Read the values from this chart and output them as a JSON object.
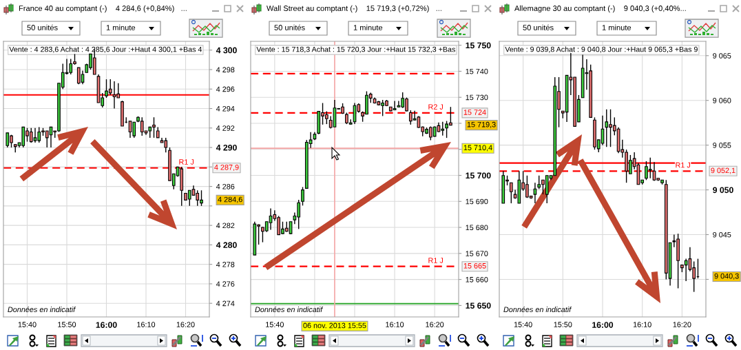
{
  "chart_data": [
    {
      "type": "candlestick",
      "title": "France 40 au comptant (-)    4 284,6 (+0,84%)   ...",
      "subtitle": "Vente : 4 283,6 Achat : 4 285,6 Jour :+Haut 4 300,1 +Bas 4",
      "x": [
        "2013-11-06T15:35",
        "2013-11-06T15:36",
        "2013-11-06T15:37",
        "2013-11-06T15:38",
        "2013-11-06T15:39",
        "2013-11-06T15:40",
        "2013-11-06T15:41",
        "2013-11-06T15:42",
        "2013-11-06T15:43",
        "2013-11-06T15:44",
        "2013-11-06T15:45",
        "2013-11-06T15:46",
        "2013-11-06T15:47",
        "2013-11-06T15:48",
        "2013-11-06T15:49",
        "2013-11-06T15:50",
        "2013-11-06T15:51",
        "2013-11-06T15:52",
        "2013-11-06T15:53",
        "2013-11-06T15:54",
        "2013-11-06T15:55",
        "2013-11-06T15:56",
        "2013-11-06T15:57",
        "2013-11-06T15:58",
        "2013-11-06T15:59",
        "2013-11-06T16:00",
        "2013-11-06T16:01",
        "2013-11-06T16:02",
        "2013-11-06T16:03",
        "2013-11-06T16:04",
        "2013-11-06T16:05",
        "2013-11-06T16:06",
        "2013-11-06T16:07",
        "2013-11-06T16:08",
        "2013-11-06T16:09",
        "2013-11-06T16:10",
        "2013-11-06T16:11",
        "2013-11-06T16:12",
        "2013-11-06T16:13",
        "2013-11-06T16:14",
        "2013-11-06T16:15",
        "2013-11-06T16:16",
        "2013-11-06T16:17",
        "2013-11-06T16:18",
        "2013-11-06T16:19",
        "2013-11-06T16:20",
        "2013-11-06T16:21",
        "2013-11-06T16:22",
        "2013-11-06T16:23",
        "2013-11-06T16:24"
      ],
      "ohlc": [
        [
          4290.2,
          4291.5,
          4290.0,
          4291.5
        ],
        [
          4291.2,
          4291.3,
          4290.0,
          4290.5
        ],
        [
          4290.3,
          4290.3,
          4289.5,
          4290.1
        ],
        [
          4290.2,
          4290.5,
          4290.0,
          4290.5
        ],
        [
          4290.2,
          4292.1,
          4290.0,
          4292.1
        ],
        [
          4291.7,
          4292.0,
          4290.6,
          4291.2
        ],
        [
          4291.6,
          4292.0,
          4290.5,
          4290.6
        ],
        [
          4290.7,
          4292.0,
          4290.5,
          4291.0
        ],
        [
          4290.7,
          4292.1,
          4290.5,
          4291.6
        ],
        [
          4291.7,
          4292.0,
          4291.2,
          4291.6
        ],
        [
          4291.7,
          4291.7,
          4290.0,
          4291.0
        ],
        [
          4291.3,
          4292.1,
          4290.0,
          4292.1
        ],
        [
          4291.7,
          4291.7,
          4291.0,
          4291.6
        ],
        [
          4291.7,
          4296.6,
          4291.6,
          4296.6
        ],
        [
          4296.2,
          4298.6,
          4296.0,
          4297.7
        ],
        [
          4297.6,
          4299.1,
          4297.5,
          4297.7
        ],
        [
          4297.7,
          4299.1,
          4297.5,
          4298.6
        ],
        [
          4298.8,
          4299.6,
          4298.5,
          4298.6
        ],
        [
          4298.2,
          4298.2,
          4296.5,
          4296.6
        ],
        [
          4296.7,
          4297.9,
          4296.5,
          4297.5
        ],
        [
          4297.7,
          4298.6,
          4297.7,
          4298.5
        ],
        [
          4298.2,
          4299.6,
          4298.0,
          4299.6
        ],
        [
          4299.2,
          4300.1,
          4297.5,
          4297.5
        ],
        [
          4297.3,
          4297.5,
          4294.6,
          4294.6
        ],
        [
          4294.3,
          4295.6,
          4294.1,
          4295.1
        ],
        [
          4295.3,
          4297.0,
          4295.1,
          4295.8
        ],
        [
          4296.0,
          4297.0,
          4295.4,
          4295.6
        ],
        [
          4295.4,
          4296.8,
          4294.0,
          4295.2
        ],
        [
          4295.5,
          4296.6,
          4295.1,
          4295.1
        ],
        [
          4294.7,
          4294.8,
          4292.2,
          4292.2
        ],
        [
          4292.6,
          4293.1,
          4292.5,
          4292.6
        ],
        [
          4292.7,
          4292.7,
          4291.0,
          4291.6
        ],
        [
          4291.2,
          4292.6,
          4291.0,
          4292.6
        ],
        [
          4292.7,
          4293.2,
          4292.6,
          4293.1
        ],
        [
          4292.7,
          4293.1,
          4291.2,
          4291.6
        ],
        [
          4291.7,
          4291.7,
          4291.3,
          4291.5
        ],
        [
          4291.7,
          4292.1,
          4291.0,
          4292.1
        ],
        [
          4292.3,
          4293.1,
          4291.0,
          4292.1
        ],
        [
          4291.7,
          4292.1,
          4291.0,
          4291.0
        ],
        [
          4290.7,
          4291.0,
          4290.5,
          4290.5
        ],
        [
          4290.7,
          4291.0,
          4289.5,
          4290.0
        ],
        [
          4289.7,
          4290.0,
          4286.6,
          4286.6
        ],
        [
          4286.1,
          4287.3,
          4285.7,
          4287.3
        ],
        [
          4287.1,
          4288.0,
          4287.0,
          4288.0
        ],
        [
          4287.8,
          4288.0,
          4284.0,
          4285.6
        ],
        [
          4285.3,
          4285.3,
          4284.6,
          4284.6
        ],
        [
          4284.7,
          4285.6,
          4284.0,
          4285.6
        ],
        [
          4285.7,
          4286.1,
          4285.1,
          4285.1
        ],
        [
          4285.3,
          4285.6,
          4284.0,
          4284.6
        ],
        [
          4284.3,
          4285.6,
          4284.0,
          4284.6
        ]
      ],
      "colors": [
        "#3fcf3f",
        "#e97474",
        "#e97474",
        "#3fcf3f",
        "#3fcf3f",
        "#e97474",
        "#e97474",
        "#3fcf3f",
        "#3fcf3f",
        "#e97474",
        "#e97474",
        "#3fcf3f",
        "#e97474",
        "#3fcf3f",
        "#3fcf3f",
        "#3fcf3f",
        "#3fcf3f",
        "#e97474",
        "#e97474",
        "#3fcf3f",
        "#3fcf3f",
        "#3fcf3f",
        "#e97474",
        "#e97474",
        "#3fcf3f",
        "#3fcf3f",
        "#e97474",
        "#e97474",
        "#e97474",
        "#e97474",
        "#000000",
        "#e97474",
        "#3fcf3f",
        "#3fcf3f",
        "#e97474",
        "#e97474",
        "#3fcf3f",
        "#e97474",
        "#e97474",
        "#e97474",
        "#e97474",
        "#e97474",
        "#3fcf3f",
        "#3fcf3f",
        "#e97474",
        "#e97474",
        "#3fcf3f",
        "#e97474",
        "#e97474",
        "#3fcf3f"
      ],
      "xlim": [
        "2013-11-06T15:34",
        "2013-11-06T16:26"
      ],
      "ylim": [
        4272.6,
        4300.9
      ],
      "xticks": [
        {
          "value": "2013-11-06T15:40",
          "label": "15:40"
        },
        {
          "value": "2013-11-06T15:50",
          "label": "15:50"
        },
        {
          "value": "2013-11-06T16:00",
          "label": "16:00"
        },
        {
          "value": "2013-11-06T16:10",
          "label": "16:10"
        },
        {
          "value": "2013-11-06T16:20",
          "label": "16:20"
        }
      ],
      "yticks": [
        {
          "value": 4274,
          "label": "4 274"
        },
        {
          "value": 4276,
          "label": "4 276"
        },
        {
          "value": 4278,
          "label": "4 278"
        },
        {
          "value": 4280,
          "label": "4 280"
        },
        {
          "value": 4282,
          "label": "4 282"
        },
        {
          "value": 4284,
          "label": null
        },
        {
          "value": 4286,
          "label": "4 286"
        },
        {
          "value": 4288,
          "label": null
        },
        {
          "value": 4290,
          "label": "4 290"
        },
        {
          "value": 4292,
          "label": "4 292"
        },
        {
          "value": 4294,
          "label": "4 294"
        },
        {
          "value": 4296,
          "label": "4 296"
        },
        {
          "value": 4298,
          "label": "4 298"
        },
        {
          "value": 4300,
          "label": "4 300"
        }
      ],
      "grid": true,
      "ref_lines": [
        {
          "axis": "y",
          "value": 4295.4,
          "color": "#ff0000",
          "line_style": "solid"
        },
        {
          "axis": "y",
          "value": 4287.9,
          "label": "4 287,9",
          "color": "#ff0000",
          "line_style": "dashed"
        }
      ],
      "annotations": [
        "50 unités",
        "1 minute",
        "Données en indicatif",
        {
          "text": "R1 J",
          "y": 4287.9
        },
        {
          "text": "4 284,6",
          "x": "2013-11-06T16:24",
          "y": 4284.6
        }
      ]
    },
    {
      "type": "candlestick",
      "title": "Wall Street au comptant (-)    15 719,3 (+0,72%)   ...",
      "subtitle": "Vente : 15 718,3 Achat : 15 720,3 Jour :+Haut 15 732,3 +Bas",
      "x": [
        "2013-11-06T15:35",
        "2013-11-06T15:36",
        "2013-11-06T15:37",
        "2013-11-06T15:38",
        "2013-11-06T15:39",
        "2013-11-06T15:40",
        "2013-11-06T15:41",
        "2013-11-06T15:42",
        "2013-11-06T15:43",
        "2013-11-06T15:44",
        "2013-11-06T15:45",
        "2013-11-06T15:46",
        "2013-11-06T15:47",
        "2013-11-06T15:48",
        "2013-11-06T15:49",
        "2013-11-06T15:50",
        "2013-11-06T15:51",
        "2013-11-06T15:52",
        "2013-11-06T15:53",
        "2013-11-06T15:54",
        "2013-11-06T15:55",
        "2013-11-06T15:56",
        "2013-11-06T15:57",
        "2013-11-06T15:58",
        "2013-11-06T15:59",
        "2013-11-06T16:00",
        "2013-11-06T16:01",
        "2013-11-06T16:02",
        "2013-11-06T16:03",
        "2013-11-06T16:04",
        "2013-11-06T16:05",
        "2013-11-06T16:06",
        "2013-11-06T16:07",
        "2013-11-06T16:08",
        "2013-11-06T16:09",
        "2013-11-06T16:10",
        "2013-11-06T16:11",
        "2013-11-06T16:12",
        "2013-11-06T16:13",
        "2013-11-06T16:14",
        "2013-11-06T16:15",
        "2013-11-06T16:16",
        "2013-11-06T16:17",
        "2013-11-06T16:18",
        "2013-11-06T16:19",
        "2013-11-06T16:20",
        "2013-11-06T16:21",
        "2013-11-06T16:22",
        "2013-11-06T16:23",
        "2013-11-06T16:24"
      ],
      "ohlc": [
        [
          15669.4,
          15682.2,
          15669.4,
          15681.3
        ],
        [
          15681.0,
          15681.2,
          15673.4,
          15680.5
        ],
        [
          15680.0,
          15680.2,
          15674.3,
          15678.5
        ],
        [
          15678.7,
          15682.2,
          15678.2,
          15682.2
        ],
        [
          15681.8,
          15687.3,
          15679.1,
          15684.4
        ],
        [
          15684.9,
          15686.6,
          15682.5,
          15683.4
        ],
        [
          15683.8,
          15684.4,
          15677.2,
          15677.2
        ],
        [
          15677.6,
          15682.2,
          15677.4,
          15679.4
        ],
        [
          15679.7,
          15682.2,
          15678.3,
          15678.5
        ],
        [
          15677.6,
          15682.2,
          15677.4,
          15682.2
        ],
        [
          15682.9,
          15685.7,
          15681.3,
          15684.4
        ],
        [
          15684.0,
          15690.6,
          15679.4,
          15689.5
        ],
        [
          15690.0,
          15695.5,
          15688.4,
          15694.4
        ],
        [
          15695.0,
          15713.6,
          15695.0,
          15712.7
        ],
        [
          15712.2,
          15716.6,
          15710.5,
          15713.6
        ],
        [
          15714.0,
          15716.6,
          15713.6,
          15715.8
        ],
        [
          15716.2,
          15724.6,
          15715.8,
          15724.6
        ],
        [
          15724.1,
          15727.8,
          15719.5,
          15722.8
        ],
        [
          15723.3,
          15724.6,
          15719.7,
          15721.8
        ],
        [
          15721.2,
          15722.8,
          15718.0,
          15718.4
        ],
        [
          15718.6,
          15729.0,
          15718.6,
          15725.9
        ],
        [
          15725.5,
          15725.7,
          15725.4,
          15725.7
        ],
        [
          15726.3,
          15727.7,
          15723.6,
          15723.9
        ],
        [
          15723.4,
          15724.1,
          15719.7,
          15720.2
        ],
        [
          15719.7,
          15721.5,
          15719.5,
          15720.2
        ],
        [
          15720.6,
          15727.8,
          15719.7,
          15726.8
        ],
        [
          15727.2,
          15727.7,
          15724.1,
          15724.6
        ],
        [
          15724.1,
          15724.6,
          15720.6,
          15722.8
        ],
        [
          15723.5,
          15732.3,
          15723.5,
          15730.8
        ],
        [
          15731.2,
          15731.8,
          15727.9,
          15729.7
        ],
        [
          15729.4,
          15729.9,
          15727.6,
          15727.8
        ],
        [
          15728.3,
          15728.6,
          15726.9,
          15727.1
        ],
        [
          15726.8,
          15729.0,
          15722.8,
          15727.8
        ],
        [
          15728.6,
          15729.0,
          15726.6,
          15726.8
        ],
        [
          15726.3,
          15726.3,
          15724.6,
          15724.8
        ],
        [
          15725.2,
          15728.6,
          15725.0,
          15725.7
        ],
        [
          15726.3,
          15728.6,
          15726.1,
          15726.8
        ],
        [
          15726.3,
          15731.9,
          15725.9,
          15729.6
        ],
        [
          15729.4,
          15729.9,
          15724.6,
          15724.8
        ],
        [
          15724.1,
          15725.0,
          15719.5,
          15720.9
        ],
        [
          15721.3,
          15724.8,
          15721.1,
          15721.8
        ],
        [
          15722.4,
          15722.8,
          15718.2,
          15718.4
        ],
        [
          15718.6,
          15718.8,
          15715.0,
          15716.8
        ],
        [
          15716.2,
          15718.4,
          15715.9,
          15717.7
        ],
        [
          15718.4,
          15718.8,
          15713.5,
          15714.7
        ],
        [
          15715.0,
          15718.8,
          15714.9,
          15718.6
        ],
        [
          15719.1,
          15720.3,
          15716.6,
          15716.8
        ],
        [
          15717.3,
          15720.6,
          15715.3,
          15717.8
        ],
        [
          15718.2,
          15720.9,
          15714.4,
          15719.7
        ],
        [
          15720.2,
          15726.3,
          15719.3,
          15719.3
        ]
      ],
      "colors": [
        "#3fcf3f",
        "#e97474",
        "#e97474",
        "#3fcf3f",
        "#3fcf3f",
        "#e97474",
        "#e97474",
        "#3fcf3f",
        "#e97474",
        "#3fcf3f",
        "#3fcf3f",
        "#3fcf3f",
        "#3fcf3f",
        "#3fcf3f",
        "#3fcf3f",
        "#3fcf3f",
        "#3fcf3f",
        "#e97474",
        "#e97474",
        "#e97474",
        "#3fcf3f",
        "#3fcf3f",
        "#e97474",
        "#e97474",
        "#3fcf3f",
        "#3fcf3f",
        "#e97474",
        "#e97474",
        "#3fcf3f",
        "#e97474",
        "#e97474",
        "#e97474",
        "#3fcf3f",
        "#e97474",
        "#e97474",
        "#3fcf3f",
        "#3fcf3f",
        "#3fcf3f",
        "#e97474",
        "#e97474",
        "#3fcf3f",
        "#e97474",
        "#e97474",
        "#3fcf3f",
        "#e97474",
        "#3fcf3f",
        "#e97474",
        "#3fcf3f",
        "#3fcf3f",
        "#e97474"
      ],
      "xlim": [
        "2013-11-06T15:34",
        "2013-11-06T16:26"
      ],
      "ylim": [
        15645.6,
        15751.5
      ],
      "xticks": [
        {
          "value": "2013-11-06T15:40",
          "label": "15:40"
        },
        {
          "value": "2013-11-06T15:50",
          "label": null
        },
        {
          "value": "2013-11-06T16:00",
          "label": null
        },
        {
          "value": "2013-11-06T16:10",
          "label": "16:10"
        },
        {
          "value": "2013-11-06T16:20",
          "label": "16:20"
        }
      ],
      "yticks": [
        {
          "value": 15650,
          "label": "15 650"
        },
        {
          "value": 15660,
          "label": "15 660"
        },
        {
          "value": 15670,
          "label": "15 670"
        },
        {
          "value": 15680,
          "label": "15 680"
        },
        {
          "value": 15690,
          "label": "15 690"
        },
        {
          "value": 15700,
          "label": "15 700"
        },
        {
          "value": 15710,
          "label": null
        },
        {
          "value": 15720,
          "label": null
        },
        {
          "value": 15730,
          "label": "15 730"
        },
        {
          "value": 15740,
          "label": "15 740"
        },
        {
          "value": 15750,
          "label": "15 750"
        }
      ],
      "grid": true,
      "ref_lines": [
        {
          "axis": "y",
          "value": 15739.1,
          "color": "#ff0000",
          "line_style": "dashed"
        },
        {
          "axis": "y",
          "value": 15724,
          "label": "15 724",
          "color": "#ff0000",
          "line_style": "dashed"
        },
        {
          "axis": "y",
          "value": 15710.4,
          "label": "15 710,4",
          "color": "#f4a6a6",
          "line_style": "solid"
        },
        {
          "axis": "y",
          "value": 15665,
          "label": "15 665",
          "color": "#ff0000",
          "line_style": "dashed"
        },
        {
          "axis": "y",
          "value": 15650.7,
          "color": "#33aa33",
          "line_style": "solid"
        },
        {
          "axis": "x",
          "value": "2013-11-06T15:55",
          "label": "06 nov. 2013 15:55",
          "color": "#f4a6a6",
          "line_style": "solid"
        }
      ],
      "annotations": [
        "50 unités",
        "1 minute",
        "Données en indicatif",
        {
          "text": "R2 J",
          "y": 15724
        },
        {
          "text": "R1 J",
          "y": 15665
        },
        {
          "text": "15 719,3",
          "x": "2013-11-06T16:24",
          "y": 15719.3
        }
      ]
    },
    {
      "type": "candlestick",
      "title": "Allemagne 30 au comptant (-)    9 040,3 (+0,40%...",
      "subtitle": "Vente : 9 039,8 Achat : 9 040,8 Jour :+Haut 9 065,3 +Bas 9",
      "x": [
        "2013-11-06T15:35",
        "2013-11-06T15:36",
        "2013-11-06T15:37",
        "2013-11-06T15:38",
        "2013-11-06T15:39",
        "2013-11-06T15:40",
        "2013-11-06T15:41",
        "2013-11-06T15:42",
        "2013-11-06T15:43",
        "2013-11-06T15:44",
        "2013-11-06T15:45",
        "2013-11-06T15:46",
        "2013-11-06T15:47",
        "2013-11-06T15:48",
        "2013-11-06T15:49",
        "2013-11-06T15:50",
        "2013-11-06T15:51",
        "2013-11-06T15:52",
        "2013-11-06T15:53",
        "2013-11-06T15:54",
        "2013-11-06T15:55",
        "2013-11-06T15:56",
        "2013-11-06T15:57",
        "2013-11-06T15:58",
        "2013-11-06T15:59",
        "2013-11-06T16:00",
        "2013-11-06T16:01",
        "2013-11-06T16:02",
        "2013-11-06T16:03",
        "2013-11-06T16:04",
        "2013-11-06T16:05",
        "2013-11-06T16:06",
        "2013-11-06T16:07",
        "2013-11-06T16:08",
        "2013-11-06T16:09",
        "2013-11-06T16:10",
        "2013-11-06T16:11",
        "2013-11-06T16:12",
        "2013-11-06T16:13",
        "2013-11-06T16:14",
        "2013-11-06T16:15",
        "2013-11-06T16:16",
        "2013-11-06T16:17",
        "2013-11-06T16:18",
        "2013-11-06T16:19",
        "2013-11-06T16:20",
        "2013-11-06T16:21",
        "2013-11-06T16:22",
        "2013-11-06T16:23",
        "2013-11-06T16:24"
      ],
      "ohlc": [
        [
          9048.5,
          9052.1,
          9048.5,
          9051.6
        ],
        [
          9051.1,
          9051.6,
          9050.5,
          9051.0
        ],
        [
          9050.8,
          9050.8,
          9048.5,
          9049.8
        ],
        [
          9049.5,
          9050.0,
          9049.0,
          9049.1
        ],
        [
          9048.5,
          9052.1,
          9048.5,
          9051.1
        ],
        [
          9050.8,
          9052.1,
          9049.9,
          9050.1
        ],
        [
          9050.6,
          9051.6,
          9049.1,
          9049.2
        ],
        [
          9049.3,
          9049.3,
          9049.0,
          9049.1
        ],
        [
          9049.5,
          9050.8,
          9048.5,
          9050.1
        ],
        [
          9050.3,
          9051.6,
          9050.1,
          9050.6
        ],
        [
          9051.1,
          9051.1,
          9049.5,
          9050.6
        ],
        [
          9049.5,
          9051.6,
          9048.5,
          9051.6
        ],
        [
          9051.3,
          9051.6,
          9051.1,
          9051.6
        ],
        [
          9051.6,
          9062.6,
          9051.6,
          9061.6
        ],
        [
          9061.0,
          9062.6,
          9057.0,
          9059.0
        ],
        [
          9058.8,
          9058.8,
          9058.0,
          9058.6
        ],
        [
          9058.7,
          9062.8,
          9057.6,
          9062.8
        ],
        [
          9062.6,
          9065.3,
          9060.6,
          9062.3
        ],
        [
          9062.6,
          9062.6,
          9057.1,
          9057.1
        ],
        [
          9057.6,
          9060.6,
          9057.6,
          9060.1
        ],
        [
          9060.3,
          9065.1,
          9060.3,
          9063.6
        ],
        [
          9063.0,
          9064.6,
          9061.2,
          9063.1
        ],
        [
          9063.3,
          9064.0,
          9058.1,
          9058.1
        ],
        [
          9057.8,
          9058.1,
          9054.5,
          9054.8
        ],
        [
          9054.6,
          9055.6,
          9054.2,
          9055.6
        ],
        [
          9055.2,
          9058.3,
          9055.0,
          9056.8
        ],
        [
          9057.0,
          9059.0,
          9054.8,
          9057.6
        ],
        [
          9057.3,
          9059.0,
          9054.8,
          9057.0
        ],
        [
          9057.2,
          9058.1,
          9056.1,
          9056.6
        ],
        [
          9056.8,
          9057.0,
          9054.1,
          9054.3
        ],
        [
          9054.5,
          9055.6,
          9053.6,
          9054.2
        ],
        [
          9054.2,
          9054.5,
          9050.8,
          9052.1
        ],
        [
          9051.8,
          9053.9,
          9051.8,
          9053.3
        ],
        [
          9053.5,
          9054.2,
          9052.3,
          9052.6
        ],
        [
          9052.8,
          9053.0,
          9050.6,
          9050.6
        ],
        [
          9050.8,
          9051.1,
          9050.6,
          9051.1
        ],
        [
          9051.3,
          9053.2,
          9051.1,
          9052.6
        ],
        [
          9052.2,
          9053.6,
          9051.3,
          9052.3
        ],
        [
          9052.1,
          9053.1,
          9051.0,
          9051.1
        ],
        [
          9051.3,
          9051.3,
          9051.0,
          9051.1
        ],
        [
          9050.8,
          9051.1,
          9050.6,
          9051.1
        ],
        [
          9050.6,
          9051.1,
          9040.0,
          9040.7
        ],
        [
          9040.1,
          9044.1,
          9039.3,
          9044.1
        ],
        [
          9044.3,
          9045.0,
          9043.6,
          9044.2
        ],
        [
          9044.5,
          9045.1,
          9039.0,
          9042.1
        ],
        [
          9041.6,
          9041.6,
          9040.8,
          9041.3
        ],
        [
          9041.6,
          9042.3,
          9039.8,
          9042.1
        ],
        [
          9042.3,
          9043.6,
          9040.9,
          9041.1
        ],
        [
          9041.3,
          9042.0,
          9038.6,
          9040.1
        ],
        [
          9040.3,
          9042.3,
          9040.1,
          9040.3
        ]
      ],
      "colors": [
        "#3fcf3f",
        "#e97474",
        "#e97474",
        "#e97474",
        "#3fcf3f",
        "#e97474",
        "#e97474",
        "#e97474",
        "#3fcf3f",
        "#3fcf3f",
        "#e97474",
        "#3fcf3f",
        "#3fcf3f",
        "#3fcf3f",
        "#e97474",
        "#e97474",
        "#3fcf3f",
        "#e97474",
        "#e97474",
        "#3fcf3f",
        "#3fcf3f",
        "#3fcf3f",
        "#e97474",
        "#e97474",
        "#3fcf3f",
        "#3fcf3f",
        "#3fcf3f",
        "#e97474",
        "#e97474",
        "#e97474",
        "#e97474",
        "#e97474",
        "#3fcf3f",
        "#e97474",
        "#e97474",
        "#3fcf3f",
        "#3fcf3f",
        "#3fcf3f",
        "#e97474",
        "#e97474",
        "#3fcf3f",
        "#e97474",
        "#3fcf3f",
        "#e97474",
        "#e97474",
        "#e97474",
        "#3fcf3f",
        "#e97474",
        "#e97474",
        "#000000"
      ],
      "xlim": [
        "2013-11-06T15:34",
        "2013-11-06T16:26"
      ],
      "ylim": [
        9035.8,
        9066.6
      ],
      "xticks": [
        {
          "value": "2013-11-06T15:40",
          "label": "15:40"
        },
        {
          "value": "2013-11-06T15:50",
          "label": "15:50"
        },
        {
          "value": "2013-11-06T16:00",
          "label": "16:00"
        },
        {
          "value": "2013-11-06T16:10",
          "label": "16:10"
        },
        {
          "value": "2013-11-06T16:20",
          "label": "16:20"
        }
      ],
      "yticks": [
        {
          "value": 9040,
          "label": null
        },
        {
          "value": 9045,
          "label": "9 045"
        },
        {
          "value": 9050,
          "label": "9 050"
        },
        {
          "value": 9055,
          "label": "9 055"
        },
        {
          "value": 9060,
          "label": "9 060"
        },
        {
          "value": 9065,
          "label": "9 065"
        }
      ],
      "grid": true,
      "ref_lines": [
        {
          "axis": "y",
          "value": 9053.0,
          "color": "#ff0000",
          "line_style": "solid"
        },
        {
          "axis": "y",
          "value": 9052.1,
          "label": "9 052,1",
          "color": "#ff0000",
          "line_style": "dashed"
        }
      ],
      "annotations": [
        "50 unités",
        "1 minute",
        "Données en indicatif",
        {
          "text": "R1 J",
          "y": 9052.1
        },
        {
          "text": "9 040,3",
          "x": "2013-11-06T16:24",
          "y": 9040.3
        }
      ]
    }
  ]
}
